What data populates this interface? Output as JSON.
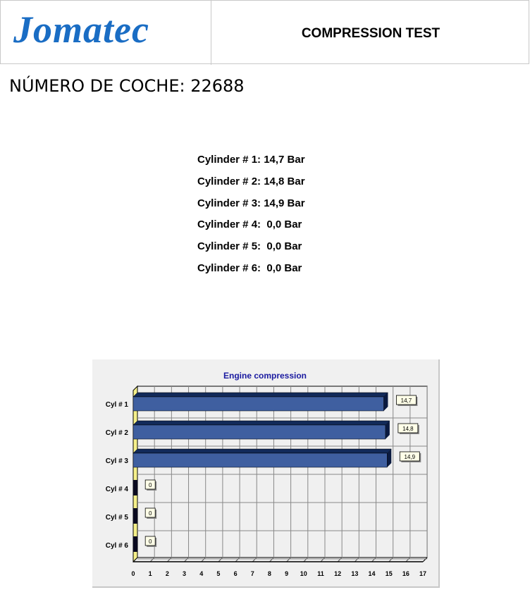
{
  "header": {
    "logo": "Jomatec",
    "title": "COMPRESSION TEST"
  },
  "car_number": "NÚMERO DE COCHE: 22688",
  "readings": [
    "Cylinder # 1: 14,7 Bar",
    "Cylinder # 2: 14,8 Bar",
    "Cylinder # 3: 14,9 Bar",
    "Cylinder # 4:  0,0 Bar",
    "Cylinder # 5:  0,0 Bar",
    "Cylinder # 6:  0,0 Bar"
  ],
  "chart_data": {
    "type": "bar",
    "orientation": "horizontal",
    "title": "Engine compression",
    "categories": [
      "Cyl # 1",
      "Cyl # 2",
      "Cyl # 3",
      "Cyl # 4",
      "Cyl # 5",
      "Cyl # 6"
    ],
    "values": [
      14.7,
      14.8,
      14.9,
      0,
      0,
      0
    ],
    "data_labels": [
      "14,7",
      "14,8",
      "14,9",
      "0",
      "0",
      "0"
    ],
    "xlim": [
      0,
      17
    ],
    "xticks": [
      0,
      1,
      2,
      3,
      4,
      5,
      6,
      7,
      8,
      9,
      10,
      11,
      12,
      13,
      14,
      15,
      16,
      17
    ],
    "grid": true,
    "colors": {
      "bar": "#3f5fa0",
      "bar_top": "#122a5a",
      "title": "#1a1aa0"
    }
  }
}
